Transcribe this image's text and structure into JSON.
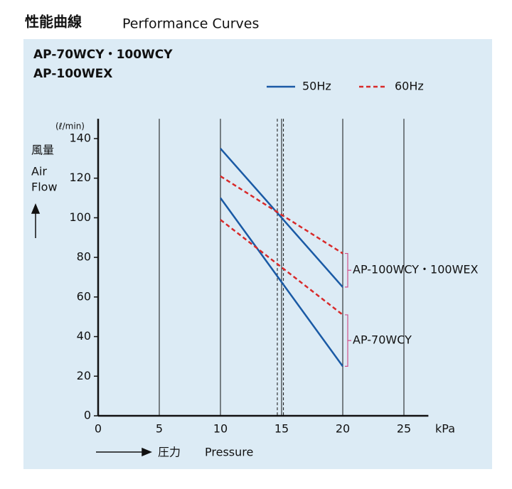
{
  "chart_data": {
    "type": "line",
    "title": "性能曲線",
    "title_en": "Performance Curves",
    "subtitle": [
      "AP-70WCY・100WCY",
      "AP-100WEX"
    ],
    "y_unit": "(ℓ/min)",
    "y_label": [
      "風量",
      "Air",
      "Flow"
    ],
    "x_unit": "kPa",
    "x_label": [
      "圧力",
      "Pressure"
    ],
    "x": [
      10,
      20
    ],
    "models": [
      "AP-100WCY・100WEX",
      "AP-70WCY"
    ],
    "series": [
      {
        "name": "50Hz",
        "color": "#1a5aa5",
        "dashed": false,
        "lines": [
          {
            "model": 0,
            "values": [
              135,
              65
            ]
          },
          {
            "model": 1,
            "values": [
              110,
              25
            ]
          }
        ]
      },
      {
        "name": "60Hz",
        "color": "#d82a2a",
        "dashed": true,
        "lines": [
          {
            "model": 0,
            "values": [
              121,
              82
            ]
          },
          {
            "model": 1,
            "values": [
              99,
              51
            ]
          }
        ]
      }
    ],
    "reference_lines": [
      14.65,
      15,
      15.15
    ],
    "xlim": [
      0,
      27
    ],
    "xticks": [
      0,
      5,
      10,
      15,
      20,
      25
    ],
    "ylim": [
      0,
      150
    ],
    "yticks": [
      0,
      20,
      40,
      60,
      80,
      100,
      120,
      140
    ],
    "grid": "x"
  }
}
